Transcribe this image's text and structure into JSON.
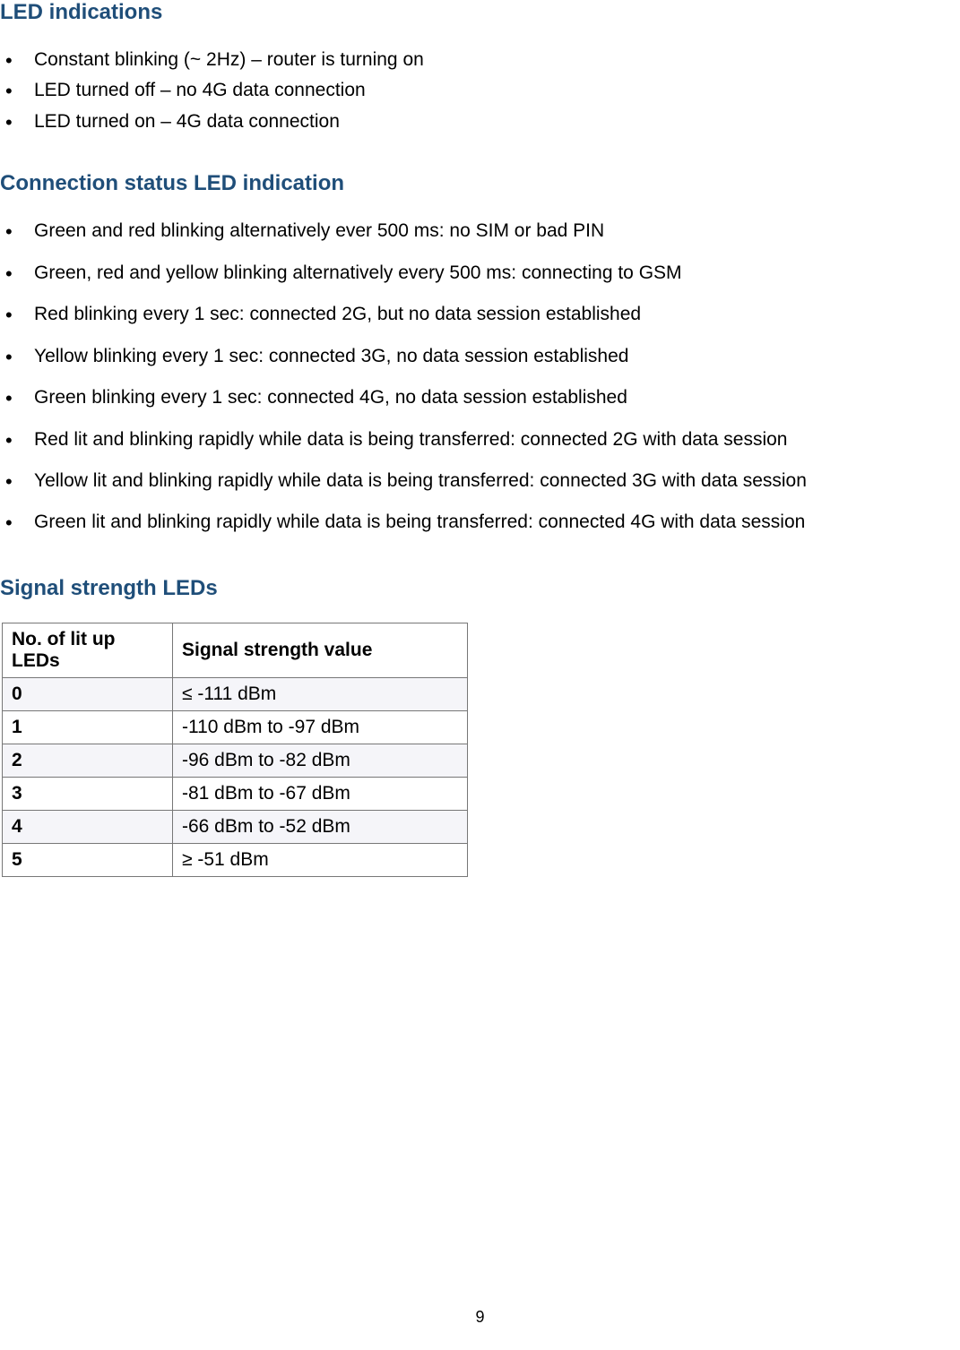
{
  "sections": {
    "led_indications": {
      "heading": "LED indications",
      "items": [
        "Constant blinking (~ 2Hz) – router is turning on",
        "LED turned off – no 4G data connection",
        "LED turned on – 4G data connection"
      ]
    },
    "connection_status": {
      "heading": "Connection status LED indication",
      "items": [
        "Green and red blinking alternatively ever 500 ms: no SIM or bad PIN",
        "Green, red and yellow blinking alternatively every 500 ms: connecting to GSM",
        "Red blinking every 1 sec: connected 2G, but no data session established",
        "Yellow blinking every 1 sec: connected 3G, no data session established",
        "Green blinking every 1 sec: connected 4G, no data session established",
        "Red lit and blinking rapidly while data is being transferred: connected 2G with data session",
        "Yellow lit and blinking rapidly while data is being transferred: connected 3G with data session",
        "Green lit and blinking rapidly while data is being transferred: connected 4G with data session"
      ]
    },
    "signal_strength": {
      "heading": "Signal strength LEDs",
      "columns": [
        "No. of lit up LEDs",
        "Signal strength value"
      ],
      "rows": [
        [
          "0",
          "≤ -111 dBm"
        ],
        [
          "1",
          "-110 dBm to -97 dBm"
        ],
        [
          "2",
          "-96 dBm to -82 dBm"
        ],
        [
          "3",
          "-81 dBm to -67 dBm"
        ],
        [
          "4",
          "-66 dBm to -52 dBm"
        ],
        [
          "5",
          "≥ -51 dBm"
        ]
      ],
      "alt_row_bg": "#f5f5f9",
      "border_color": "#777777"
    }
  },
  "colors": {
    "heading": "#1f4e79",
    "body_text": "#000000",
    "background": "#ffffff"
  },
  "typography": {
    "heading_fontsize": 24,
    "body_fontsize": 21,
    "font_family": "Arial"
  },
  "page_number": "9"
}
